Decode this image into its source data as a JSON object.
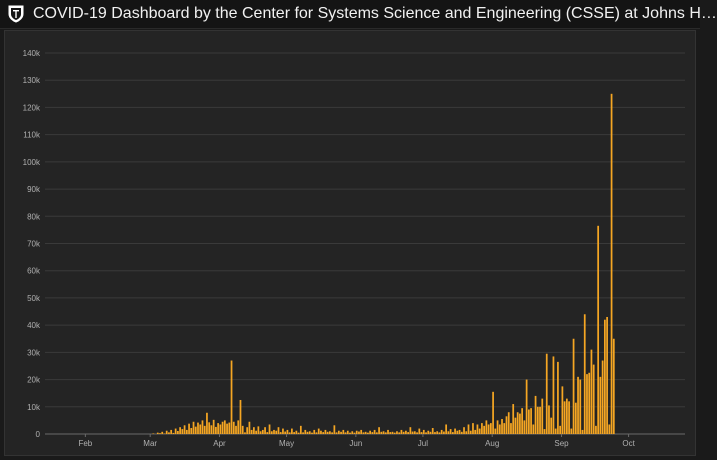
{
  "window": {
    "title": "COVID-19 Dashboard by the Center for Systems Science and Engineering (CSSE) at Johns H…",
    "logo_icon": "jhu-shield-icon"
  },
  "colors": {
    "bar": "#f5a623",
    "background": "#1a1a1a",
    "panel": "#242424",
    "grid": "#3a3a3a",
    "tick_text": "#b0b0b0"
  },
  "chart_data": {
    "type": "bar",
    "title": "",
    "xlabel": "",
    "ylabel": "",
    "ylim": [
      0,
      140000
    ],
    "grid": true,
    "yticks": [
      0,
      10000,
      20000,
      30000,
      40000,
      50000,
      60000,
      70000,
      80000,
      90000,
      100000,
      110000,
      120000,
      130000,
      140000
    ],
    "ytick_labels": [
      "0",
      "10k",
      "20k",
      "30k",
      "40k",
      "50k",
      "60k",
      "70k",
      "80k",
      "90k",
      "100k",
      "110k",
      "120k",
      "130k",
      "140k"
    ],
    "x_start": "2020-01-22",
    "x_end": "2020-10-23",
    "xtick_dates": [
      "2020-02-01",
      "2020-03-01",
      "2020-04-01",
      "2020-05-01",
      "2020-06-01",
      "2020-07-01",
      "2020-08-01",
      "2020-09-01",
      "2020-10-01"
    ],
    "xtick_labels": [
      "Feb",
      "Mar",
      "Apr",
      "May",
      "Jun",
      "Jul",
      "Aug",
      "Sep",
      "Oct"
    ],
    "values": [
      0,
      0,
      0,
      0,
      0,
      0,
      0,
      0,
      0,
      0,
      0,
      0,
      0,
      0,
      0,
      0,
      0,
      0,
      0,
      0,
      0,
      0,
      0,
      0,
      0,
      0,
      0,
      0,
      0,
      0,
      0,
      0,
      0,
      0,
      0,
      0,
      0,
      0,
      0,
      0,
      200,
      0,
      500,
      300,
      800,
      200,
      1200,
      600,
      1500,
      400,
      2000,
      1100,
      2500,
      1800,
      3200,
      1500,
      3800,
      2200,
      4500,
      2700,
      4200,
      3500,
      5000,
      3000,
      7800,
      4300,
      3200,
      5200,
      2600,
      4000,
      3500,
      4500,
      5000,
      3800,
      4200,
      27000,
      4500,
      3000,
      5000,
      12500,
      3000,
      600,
      2500,
      4500,
      1500,
      2500,
      1200,
      2800,
      1000,
      1500,
      2500,
      700,
      3500,
      1000,
      1500,
      1200,
      2500,
      700,
      2000,
      900,
      1500,
      600,
      2000,
      700,
      1200,
      500,
      3000,
      600,
      1500,
      800,
      1000,
      500,
      1500,
      600,
      2000,
      1200,
      700,
      1500,
      800,
      1000,
      600,
      3200,
      600,
      1200,
      800,
      1500,
      600,
      1200,
      500,
      1000,
      500,
      1200,
      900,
      1500,
      600,
      800,
      500,
      1200,
      700,
      1500,
      600,
      2500,
      800,
      1000,
      600,
      1500,
      700,
      800,
      500,
      1000,
      600,
      1500,
      800,
      1200,
      700,
      2500,
      900,
      1000,
      600,
      2000,
      700,
      1500,
      600,
      1200,
      800,
      2200,
      700,
      1000,
      600,
      1500,
      900,
      3500,
      1000,
      1800,
      700,
      2000,
      1200,
      1500,
      800,
      2500,
      1000,
      3500,
      1200,
      4000,
      1500,
      3500,
      2000,
      4000,
      3000,
      5000,
      3500,
      4000,
      15500,
      2000,
      5000,
      3500,
      5500,
      4000,
      6500,
      8000,
      4000,
      11000,
      6000,
      8000,
      7500,
      9500,
      5000,
      20000,
      9000,
      9500,
      3500,
      14000,
      10000,
      10000,
      13000,
      1800,
      29500,
      10500,
      6000,
      28500,
      2000,
      26500,
      3000,
      17500,
      12000,
      13000,
      12000,
      2000,
      35000,
      11500,
      21000,
      20000,
      1500,
      44000,
      22000,
      22500,
      31000,
      25500,
      3000,
      76500,
      21000,
      27000,
      42000,
      43000,
      3500,
      125000,
      35000
    ]
  }
}
